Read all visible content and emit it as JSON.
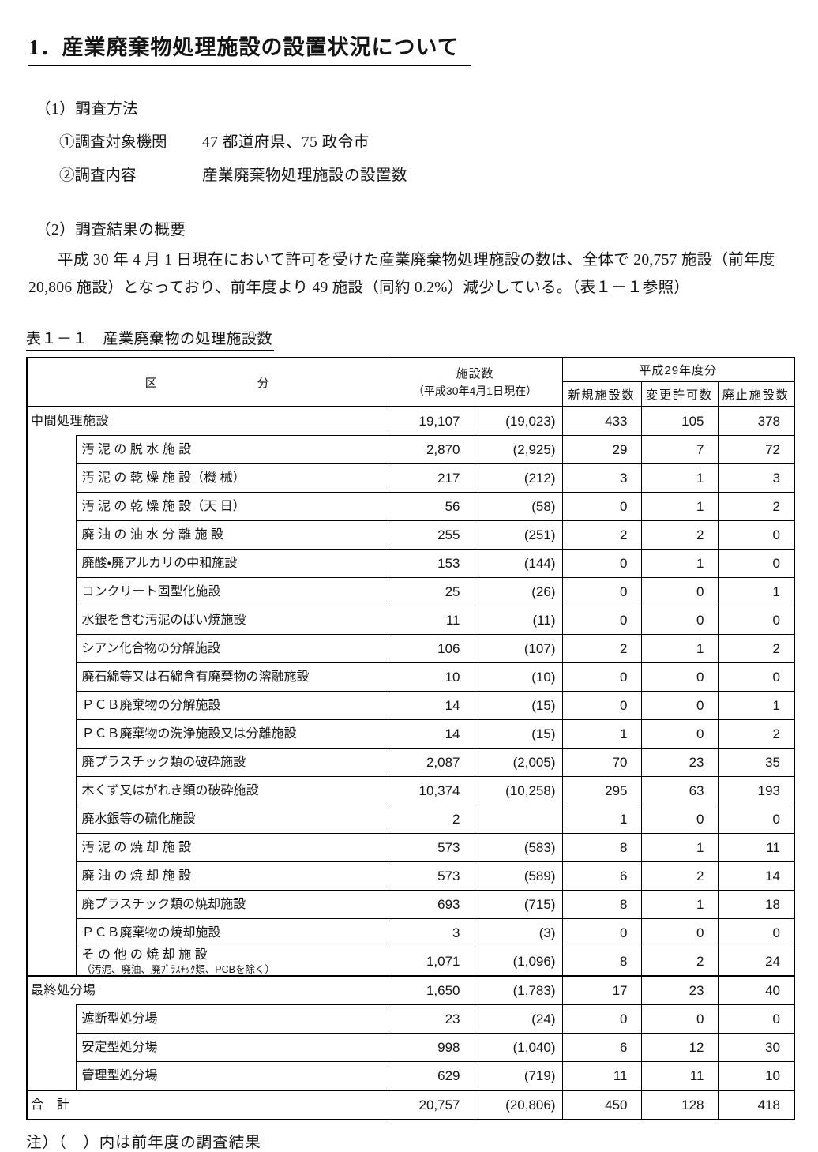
{
  "page": {
    "title": "1．産業廃棄物処理施設の設置状況について",
    "section1": {
      "heading": "（1）調査方法",
      "items": [
        {
          "label": "①調査対象機関",
          "value": "47 都道府県、75 政令市"
        },
        {
          "label": "②調査内容",
          "value": "産業廃棄物処理施設の設置数"
        }
      ]
    },
    "section2": {
      "heading": "（2）調査結果の概要",
      "paragraph": "平成 30 年 4 月 1 日現在において許可を受けた産業廃棄物処理施設の数は、全体で 20,757 施設（前年度 20,806 施設）となっており、前年度より 49 施設（同約 0.2%）減少している。（表１－１参照）"
    },
    "table_caption": "表１－１　産業廃棄物の処理施設数",
    "note": "注）（　）内は前年度の調査結果"
  },
  "table": {
    "headers": {
      "category_left": "区",
      "category_right": "分",
      "count": "施設数",
      "count_sub": "（平成30年4月1日現在）",
      "h29": "平成29年度分",
      "new": "新規施設数",
      "changed": "変更許可数",
      "abolished": "廃止施設数"
    },
    "rows": [
      {
        "label": "中間処理施設",
        "level": 0,
        "thick": true,
        "values": [
          "19,107",
          "(19,023)",
          "433",
          "105",
          "378"
        ]
      },
      {
        "label": "汚 泥 の 脱 水 施 設",
        "level": 1,
        "values": [
          "2,870",
          "(2,925)",
          "29",
          "7",
          "72"
        ]
      },
      {
        "label": "汚 泥 の 乾 燥 施 設（機 械）",
        "level": 1,
        "values": [
          "217",
          "(212)",
          "3",
          "1",
          "3"
        ]
      },
      {
        "label": "汚 泥 の 乾 燥 施 設（天 日）",
        "level": 1,
        "values": [
          "56",
          "(58)",
          "0",
          "1",
          "2"
        ]
      },
      {
        "label": "廃 油 の 油 水 分 離 施 設",
        "level": 1,
        "values": [
          "255",
          "(251)",
          "2",
          "2",
          "0"
        ]
      },
      {
        "label": "廃酸・廃アルカリの中和施設",
        "level": 1,
        "values": [
          "153",
          "(144)",
          "0",
          "1",
          "0"
        ]
      },
      {
        "label": "コンクリート固型化施設",
        "level": 1,
        "values": [
          "25",
          "(26)",
          "0",
          "0",
          "1"
        ]
      },
      {
        "label": "水銀を含む汚泥のばい焼施設",
        "level": 1,
        "values": [
          "11",
          "(11)",
          "0",
          "0",
          "0"
        ]
      },
      {
        "label": "シアン化合物の分解施設",
        "level": 1,
        "values": [
          "106",
          "(107)",
          "2",
          "1",
          "2"
        ]
      },
      {
        "label": "廃石綿等又は石綿含有廃棄物の溶融施設",
        "level": 1,
        "values": [
          "10",
          "(10)",
          "0",
          "0",
          "0"
        ]
      },
      {
        "label": "ＰＣＢ廃棄物の分解施設",
        "level": 1,
        "values": [
          "14",
          "(15)",
          "0",
          "0",
          "1"
        ]
      },
      {
        "label": "ＰＣＢ廃棄物の洗浄施設又は分離施設",
        "level": 1,
        "values": [
          "14",
          "(15)",
          "1",
          "0",
          "2"
        ]
      },
      {
        "label": "廃プラスチック類の破砕施設",
        "level": 1,
        "values": [
          "2,087",
          "(2,005)",
          "70",
          "23",
          "35"
        ]
      },
      {
        "label": "木くず又はがれき類の破砕施設",
        "level": 1,
        "values": [
          "10,374",
          "(10,258)",
          "295",
          "63",
          "193"
        ]
      },
      {
        "label": "廃水銀等の硫化施設",
        "level": 1,
        "values": [
          "2",
          "",
          "1",
          "0",
          "0"
        ]
      },
      {
        "label": "汚 泥 の 焼 却 施 設",
        "level": 1,
        "values": [
          "573",
          "(583)",
          "8",
          "1",
          "11"
        ]
      },
      {
        "label": "廃 油 の 焼 却 施 設",
        "level": 1,
        "values": [
          "573",
          "(589)",
          "6",
          "2",
          "14"
        ]
      },
      {
        "label": "廃プラスチック類の焼却施設",
        "level": 1,
        "values": [
          "693",
          "(715)",
          "8",
          "1",
          "18"
        ]
      },
      {
        "label": "ＰＣＢ廃棄物の焼却施設",
        "level": 1,
        "values": [
          "3",
          "(3)",
          "0",
          "0",
          "0"
        ]
      },
      {
        "label": "そ の 他 の 焼 却 施 設",
        "note": "（汚泥、廃油、廃ﾌﾟﾗｽﾁｯｸ類、PCBを除く）",
        "level": 1,
        "values": [
          "1,071",
          "(1,096)",
          "8",
          "2",
          "24"
        ]
      },
      {
        "label": "最終処分場",
        "level": 0,
        "thick": true,
        "values": [
          "1,650",
          "(1,783)",
          "17",
          "23",
          "40"
        ]
      },
      {
        "label": "遮断型処分場",
        "level": 1,
        "values": [
          "23",
          "(24)",
          "0",
          "0",
          "0"
        ]
      },
      {
        "label": "安定型処分場",
        "level": 1,
        "values": [
          "998",
          "(1,040)",
          "6",
          "12",
          "30"
        ]
      },
      {
        "label": "管理型処分場",
        "level": 1,
        "values": [
          "629",
          "(719)",
          "11",
          "11",
          "10"
        ]
      },
      {
        "label": "合　計",
        "level": 0,
        "thick": true,
        "values": [
          "20,757",
          "(20,806)",
          "450",
          "128",
          "418"
        ]
      }
    ]
  }
}
